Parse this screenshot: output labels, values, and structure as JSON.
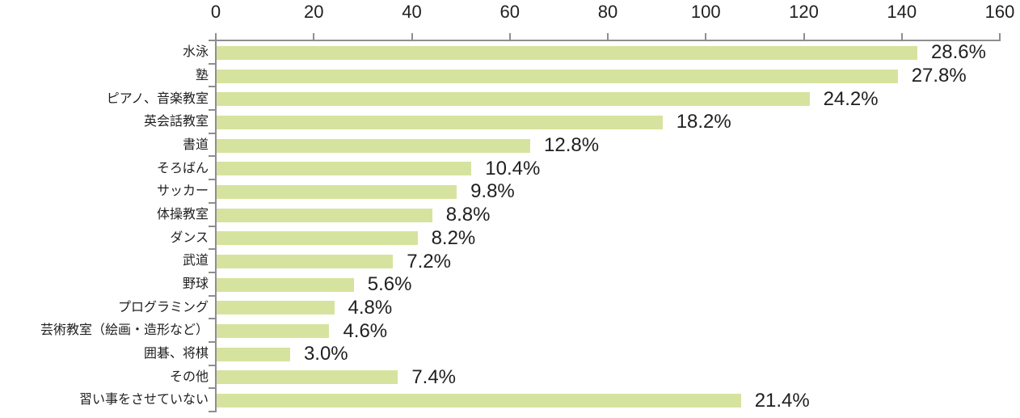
{
  "chart_data": {
    "type": "bar",
    "orientation": "horizontal",
    "title": "",
    "xlabel": "",
    "ylabel": "",
    "axis_position": "top",
    "grid": false,
    "legend": false,
    "xlim": [
      0,
      160
    ],
    "x_ticks": [
      0,
      20,
      40,
      60,
      80,
      100,
      120,
      140,
      160
    ],
    "categories": [
      "水泳",
      "塾",
      "ピアノ、音楽教室",
      "英会話教室",
      "書道",
      "そろばん",
      "サッカー",
      "体操教室",
      "ダンス",
      "武道",
      "野球",
      "プログラミング",
      "芸術教室（絵画・造形など）",
      "囲碁、将棋",
      "その他",
      "習い事をさせていない"
    ],
    "values": [
      143,
      139,
      121,
      91,
      64,
      52,
      49,
      44,
      41,
      36,
      28,
      24,
      23,
      15,
      37,
      107
    ],
    "data_labels": [
      "28.6%",
      "27.8%",
      "24.2%",
      "18.2%",
      "12.8%",
      "10.4%",
      "9.8%",
      "8.8%",
      "8.2%",
      "7.2%",
      "5.6%",
      "4.8%",
      "4.6%",
      "3.0%",
      "7.4%",
      "21.4%"
    ],
    "colors": {
      "bar": "#d6e39e",
      "axis": "#8e8e8e",
      "text": "#1f1f1f",
      "background": "#ffffff"
    }
  }
}
